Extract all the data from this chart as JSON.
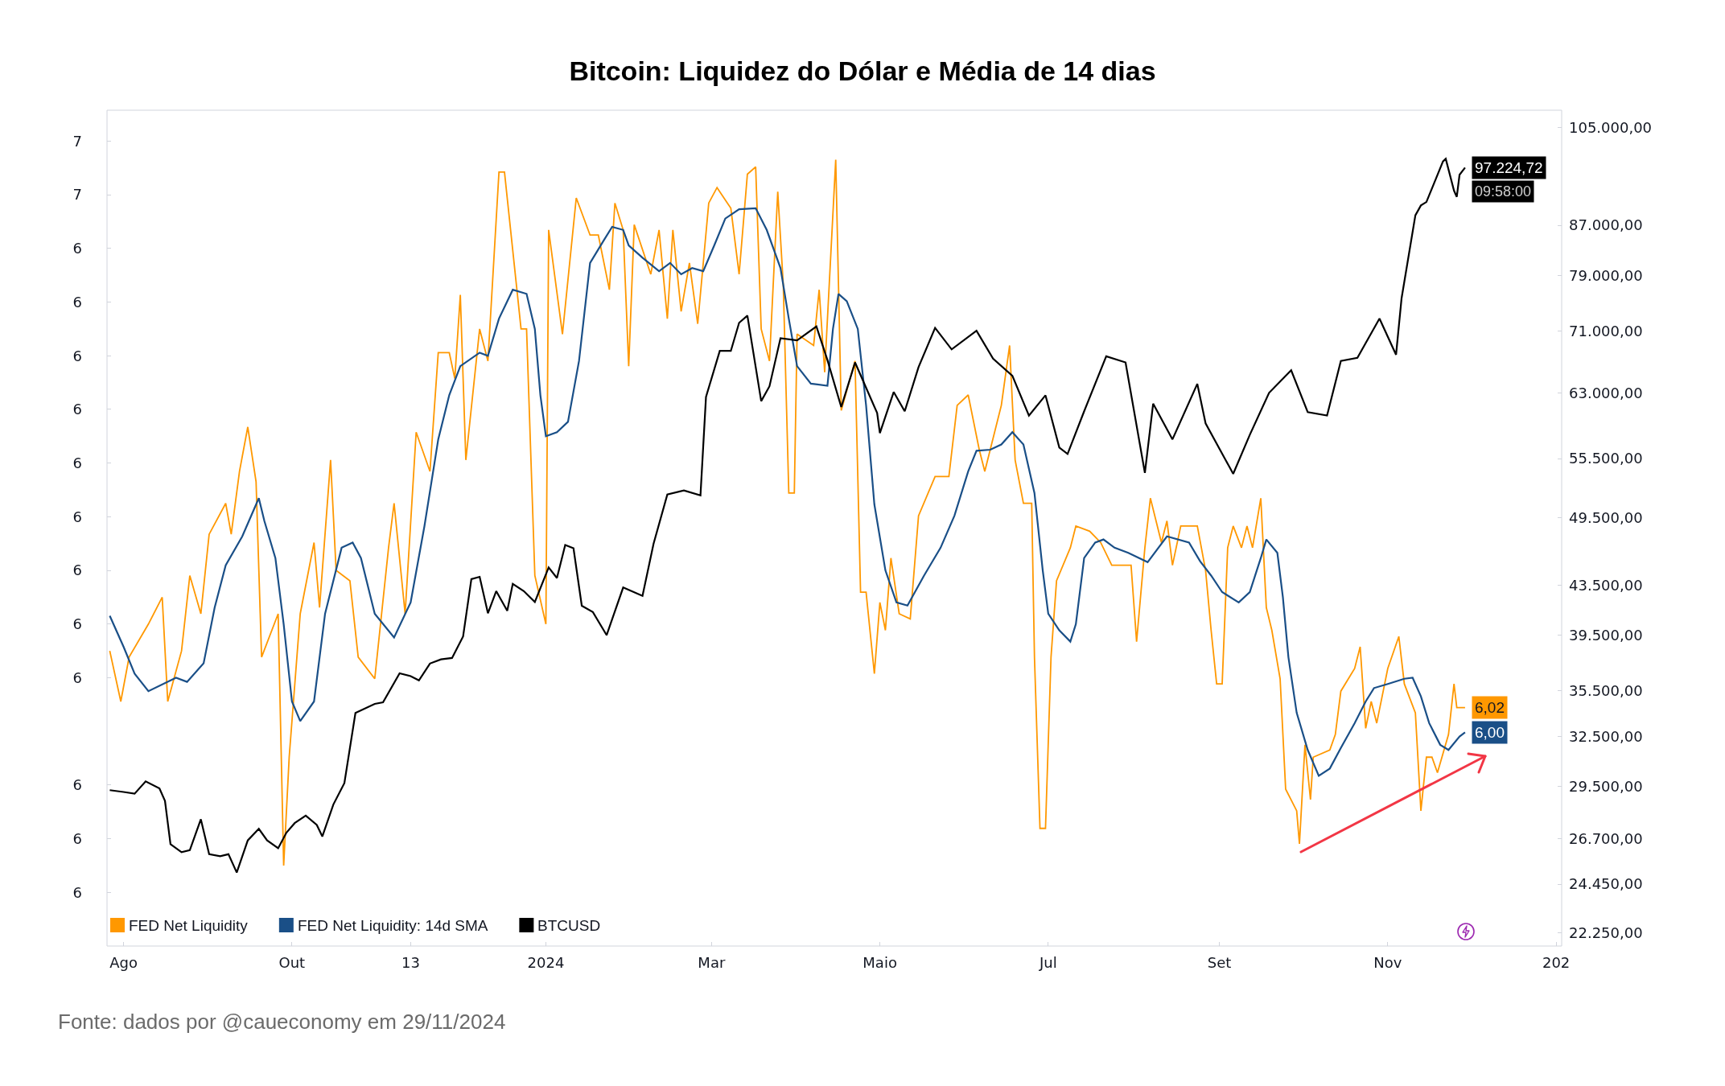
{
  "chart_data": {
    "type": "line",
    "title": "Bitcoin: Liquidez do Dólar e Média de 14 dias",
    "annotations": [
      "Fonte: dados por @caueconomy em 29/11/2024",
      "09:58:00"
    ],
    "legend": "bottom left",
    "xlim": [
      "2023-07-26",
      "2025-01-03"
    ],
    "xticks": [
      {
        "value": "2023-08-01",
        "label": "Ago"
      },
      {
        "value": "2023-10-01",
        "label": "Out"
      },
      {
        "value": "2023-11-13",
        "label": "13"
      },
      {
        "value": "2024-01-01",
        "label": "2024"
      },
      {
        "value": "2024-03-01",
        "label": "Mar"
      },
      {
        "value": "2024-05-01",
        "label": "Maio"
      },
      {
        "value": "2024-07-01",
        "label": "Jul"
      },
      {
        "value": "2024-09-01",
        "label": "Set"
      },
      {
        "value": "2024-11-01",
        "label": "Nov"
      },
      {
        "value": "2025-01-01",
        "label": "202"
      }
    ],
    "ylim": [
      5.79,
      6.6
    ],
    "yticks": [
      {
        "value": 6.57,
        "label": "7"
      },
      {
        "value": 6.518,
        "label": "7"
      },
      {
        "value": 6.466,
        "label": "6"
      },
      {
        "value": 6.414,
        "label": "6"
      },
      {
        "value": 6.362,
        "label": "6"
      },
      {
        "value": 6.31,
        "label": "6"
      },
      {
        "value": 6.258,
        "label": "6"
      },
      {
        "value": 6.206,
        "label": "6"
      },
      {
        "value": 6.154,
        "label": "6"
      },
      {
        "value": 6.102,
        "label": "6"
      },
      {
        "value": 6.05,
        "label": "6"
      },
      {
        "value": 5.946,
        "label": "6"
      },
      {
        "value": 5.894,
        "label": "6"
      },
      {
        "value": 5.842,
        "label": "6"
      }
    ],
    "y2lim": [
      21700,
      108600
    ],
    "y2ticks": [
      {
        "value": 105000,
        "label": "105.000,00"
      },
      {
        "value": 87000,
        "label": "87.000,00"
      },
      {
        "value": 79000,
        "label": "79.000,00"
      },
      {
        "value": 71000,
        "label": "71.000,00"
      },
      {
        "value": 63000,
        "label": "63.000,00"
      },
      {
        "value": 55500,
        "label": "55.500,00"
      },
      {
        "value": 49500,
        "label": "49.500,00"
      },
      {
        "value": 43500,
        "label": "43.500,00"
      },
      {
        "value": 39500,
        "label": "39.500,00"
      },
      {
        "value": 35500,
        "label": "35.500,00"
      },
      {
        "value": 32500,
        "label": "32.500,00"
      },
      {
        "value": 29500,
        "label": "29.500,00"
      },
      {
        "value": 26700,
        "label": "26.700,00"
      },
      {
        "value": 24450,
        "label": "24.450,00"
      },
      {
        "value": 22250,
        "label": "22.250,00"
      }
    ],
    "log": "y2",
    "series": [
      {
        "name": "FED Net Liquidity",
        "color": "#ff9800",
        "x": [
          "2023-07-27",
          "2023-07-31",
          "2023-08-03",
          "2023-08-10",
          "2023-08-15",
          "2023-08-17",
          "2023-08-22",
          "2023-08-25",
          "2023-08-29",
          "2023-09-01",
          "2023-09-07",
          "2023-09-09",
          "2023-09-12",
          "2023-09-15",
          "2023-09-18",
          "2023-09-20",
          "2023-09-26",
          "2023-09-28",
          "2023-09-30",
          "2023-10-04",
          "2023-10-09",
          "2023-10-11",
          "2023-10-15",
          "2023-10-17",
          "2023-10-22",
          "2023-10-25",
          "2023-10-31",
          "2023-11-05",
          "2023-11-07",
          "2023-11-11",
          "2023-11-15",
          "2023-11-20",
          "2023-11-23",
          "2023-11-27",
          "2023-11-29",
          "2023-12-01",
          "2023-12-03",
          "2023-12-08",
          "2023-12-11",
          "2023-12-15",
          "2023-12-17",
          "2023-12-23",
          "2023-12-25",
          "2023-12-28",
          "2024-01-01",
          "2024-01-02",
          "2024-01-07",
          "2024-01-12",
          "2024-01-17",
          "2024-01-20",
          "2024-01-24",
          "2024-01-26",
          "2024-01-29",
          "2024-01-31",
          "2024-02-02",
          "2024-02-08",
          "2024-02-11",
          "2024-02-14",
          "2024-02-16",
          "2024-02-19",
          "2024-02-22",
          "2024-02-25",
          "2024-02-29",
          "2024-03-03",
          "2024-03-08",
          "2024-03-11",
          "2024-03-14",
          "2024-03-17",
          "2024-03-19",
          "2024-03-22",
          "2024-03-25",
          "2024-03-27",
          "2024-03-29",
          "2024-03-31",
          "2024-04-01",
          "2024-04-07",
          "2024-04-09",
          "2024-04-11",
          "2024-04-15",
          "2024-04-17",
          "2024-04-22",
          "2024-04-24",
          "2024-04-26",
          "2024-04-29",
          "2024-05-01",
          "2024-05-03",
          "2024-05-05",
          "2024-05-08",
          "2024-05-12",
          "2024-05-15",
          "2024-05-21",
          "2024-05-26",
          "2024-05-29",
          "2024-06-02",
          "2024-06-06",
          "2024-06-08",
          "2024-06-14",
          "2024-06-17",
          "2024-06-19",
          "2024-06-22",
          "2024-06-25",
          "2024-06-26",
          "2024-06-28",
          "2024-06-30",
          "2024-07-02",
          "2024-07-04",
          "2024-07-09",
          "2024-07-11",
          "2024-07-16",
          "2024-07-20",
          "2024-07-24",
          "2024-07-31",
          "2024-08-02",
          "2024-08-05",
          "2024-08-07",
          "2024-08-11",
          "2024-08-13",
          "2024-08-15",
          "2024-08-18",
          "2024-08-24",
          "2024-08-27",
          "2024-08-29",
          "2024-08-31",
          "2024-09-02",
          "2024-09-04",
          "2024-09-06",
          "2024-09-09",
          "2024-09-11",
          "2024-09-13",
          "2024-09-16",
          "2024-09-18",
          "2024-09-20",
          "2024-09-23",
          "2024-09-25",
          "2024-09-29",
          "2024-09-30",
          "2024-10-02",
          "2024-10-04",
          "2024-10-05",
          "2024-10-11",
          "2024-10-13",
          "2024-10-15",
          "2024-10-20",
          "2024-10-22",
          "2024-10-24",
          "2024-10-26",
          "2024-10-28",
          "2024-11-01",
          "2024-11-05",
          "2024-11-07",
          "2024-11-11",
          "2024-11-13",
          "2024-11-15",
          "2024-11-17",
          "2024-11-19",
          "2024-11-23",
          "2024-11-25",
          "2024-11-26",
          "2024-11-29"
        ],
        "values": [
          6.076,
          6.027,
          6.07,
          6.102,
          6.128,
          6.027,
          6.076,
          6.149,
          6.112,
          6.189,
          6.219,
          6.189,
          6.25,
          6.293,
          6.24,
          6.07,
          6.112,
          5.868,
          5.973,
          6.112,
          6.181,
          6.118,
          6.261,
          6.154,
          6.144,
          6.07,
          6.049,
          6.176,
          6.219,
          6.112,
          6.288,
          6.25,
          6.365,
          6.365,
          6.34,
          6.421,
          6.261,
          6.388,
          6.357,
          6.54,
          6.54,
          6.388,
          6.388,
          6.149,
          6.102,
          6.484,
          6.383,
          6.515,
          6.479,
          6.479,
          6.426,
          6.51,
          6.484,
          6.352,
          6.489,
          6.441,
          6.484,
          6.398,
          6.484,
          6.405,
          6.452,
          6.393,
          6.51,
          6.525,
          6.505,
          6.441,
          6.538,
          6.545,
          6.388,
          6.357,
          6.521,
          6.431,
          6.229,
          6.229,
          6.383,
          6.372,
          6.426,
          6.346,
          6.552,
          6.309,
          6.357,
          6.133,
          6.133,
          6.054,
          6.123,
          6.096,
          6.166,
          6.112,
          6.107,
          6.207,
          6.245,
          6.245,
          6.314,
          6.324,
          6.271,
          6.25,
          6.314,
          6.372,
          6.261,
          6.219,
          6.219,
          6.07,
          5.904,
          5.904,
          6.07,
          6.144,
          6.176,
          6.197,
          6.192,
          6.181,
          6.159,
          6.159,
          6.085,
          6.176,
          6.224,
          6.181,
          6.202,
          6.159,
          6.197,
          6.197,
          6.154,
          6.096,
          6.044,
          6.044,
          6.176,
          6.197,
          6.176,
          6.197,
          6.176,
          6.224,
          6.118,
          6.096,
          6.049,
          5.942,
          5.921,
          5.889,
          5.985,
          5.932,
          5.973,
          5.98,
          5.995,
          6.037,
          6.059,
          6.08,
          6.001,
          6.027,
          6.006,
          6.059,
          6.09,
          6.044,
          6.016,
          5.921,
          5.973,
          5.973,
          5.958,
          5.995,
          6.044,
          6.021,
          6.021
        ],
        "value_labels": [
          null,
          null,
          null,
          null,
          null,
          null,
          null,
          null,
          null,
          null,
          null,
          null,
          null,
          null,
          null,
          null,
          null,
          null,
          null,
          null,
          null,
          null,
          null,
          null,
          null,
          null,
          null,
          null,
          null,
          null,
          null,
          null,
          null,
          null,
          null,
          null,
          null,
          null,
          null,
          null,
          null,
          null,
          null,
          null,
          null,
          null,
          null,
          null,
          null,
          null,
          null,
          null,
          null,
          null,
          null,
          null,
          null,
          null,
          null,
          null,
          null,
          null,
          null,
          null,
          null,
          null,
          null,
          null,
          null,
          null,
          null,
          null,
          null,
          null,
          null,
          null,
          null,
          null,
          null,
          null,
          null,
          null,
          null,
          null,
          null,
          null,
          null,
          null,
          null,
          null,
          null,
          null,
          null,
          null,
          null,
          null,
          null,
          null,
          null,
          null,
          null,
          null,
          null,
          null,
          null,
          null,
          null,
          null,
          null,
          null,
          null,
          null,
          null,
          null,
          null,
          null,
          null,
          null,
          null,
          null,
          null,
          null,
          null,
          null,
          null,
          null,
          null,
          null,
          null,
          null,
          null,
          null,
          null,
          null,
          null,
          null,
          null,
          null,
          null,
          null,
          null,
          null,
          null,
          null,
          null,
          null,
          null,
          null,
          null,
          null,
          null,
          null,
          null,
          null,
          null,
          null,
          null,
          null,
          "6,02"
        ]
      },
      {
        "name": "FED Net Liquidity: 14d SMA",
        "color": "#1a4f87",
        "x": [
          "2023-07-27",
          "2023-08-01",
          "2023-08-05",
          "2023-08-10",
          "2023-08-20",
          "2023-08-24",
          "2023-08-30",
          "2023-09-03",
          "2023-09-07",
          "2023-09-13",
          "2023-09-19",
          "2023-09-21",
          "2023-09-25",
          "2023-09-28",
          "2023-10-01",
          "2023-10-04",
          "2023-10-09",
          "2023-10-13",
          "2023-10-19",
          "2023-10-23",
          "2023-10-26",
          "2023-10-31",
          "2023-11-07",
          "2023-11-13",
          "2023-11-18",
          "2023-11-23",
          "2023-11-27",
          "2023-12-01",
          "2023-12-08",
          "2023-12-11",
          "2023-12-15",
          "2023-12-20",
          "2023-12-25",
          "2023-12-28",
          "2023-12-30",
          "2024-01-01",
          "2024-01-05",
          "2024-01-09",
          "2024-01-13",
          "2024-01-17",
          "2024-01-22",
          "2024-01-25",
          "2024-01-29",
          "2024-01-31",
          "2024-02-05",
          "2024-02-11",
          "2024-02-15",
          "2024-02-19",
          "2024-02-23",
          "2024-02-27",
          "2024-03-02",
          "2024-03-06",
          "2024-03-11",
          "2024-03-17",
          "2024-03-21",
          "2024-03-26",
          "2024-03-29",
          "2024-04-01",
          "2024-04-06",
          "2024-04-12",
          "2024-04-14",
          "2024-04-16",
          "2024-04-19",
          "2024-04-23",
          "2024-04-26",
          "2024-04-29",
          "2024-05-03",
          "2024-05-07",
          "2024-05-11",
          "2024-05-17",
          "2024-05-23",
          "2024-05-28",
          "2024-06-02",
          "2024-06-05",
          "2024-06-10",
          "2024-06-14",
          "2024-06-18",
          "2024-06-22",
          "2024-06-26",
          "2024-06-29",
          "2024-07-01",
          "2024-07-05",
          "2024-07-09",
          "2024-07-11",
          "2024-07-14",
          "2024-07-18",
          "2024-07-21",
          "2024-07-25",
          "2024-07-30",
          "2024-08-06",
          "2024-08-13",
          "2024-08-21",
          "2024-08-25",
          "2024-08-29",
          "2024-09-02",
          "2024-09-08",
          "2024-09-12",
          "2024-09-16",
          "2024-09-18",
          "2024-09-22",
          "2024-09-24",
          "2024-09-26",
          "2024-09-29",
          "2024-10-03",
          "2024-10-07",
          "2024-10-11",
          "2024-10-15",
          "2024-10-20",
          "2024-10-24",
          "2024-10-27",
          "2024-11-01",
          "2024-11-07",
          "2024-11-10",
          "2024-11-13",
          "2024-11-16",
          "2024-11-20",
          "2024-11-23",
          "2024-11-27",
          "2024-11-29"
        ],
        "values": [
          6.11,
          6.08,
          6.054,
          6.037,
          6.05,
          6.046,
          6.064,
          6.118,
          6.159,
          6.187,
          6.224,
          6.202,
          6.166,
          6.102,
          6.027,
          6.008,
          6.027,
          6.112,
          6.176,
          6.181,
          6.166,
          6.112,
          6.089,
          6.123,
          6.197,
          6.281,
          6.324,
          6.352,
          6.365,
          6.362,
          6.398,
          6.426,
          6.422,
          6.388,
          6.324,
          6.284,
          6.288,
          6.298,
          6.357,
          6.452,
          6.474,
          6.487,
          6.484,
          6.469,
          6.457,
          6.444,
          6.452,
          6.441,
          6.447,
          6.444,
          6.469,
          6.495,
          6.504,
          6.505,
          6.484,
          6.447,
          6.398,
          6.352,
          6.335,
          6.333,
          6.388,
          6.422,
          6.415,
          6.388,
          6.314,
          6.218,
          6.154,
          6.123,
          6.12,
          6.149,
          6.176,
          6.207,
          6.25,
          6.27,
          6.271,
          6.276,
          6.288,
          6.276,
          6.229,
          6.154,
          6.112,
          6.096,
          6.085,
          6.102,
          6.166,
          6.181,
          6.184,
          6.176,
          6.171,
          6.162,
          6.187,
          6.181,
          6.163,
          6.149,
          6.133,
          6.123,
          6.133,
          6.166,
          6.184,
          6.171,
          6.128,
          6.07,
          6.016,
          5.98,
          5.955,
          5.962,
          5.982,
          6.006,
          6.027,
          6.04,
          6.044,
          6.049,
          6.05,
          6.032,
          6.006,
          5.985,
          5.98,
          5.993,
          5.997
        ],
        "value_labels": [
          null,
          null,
          null,
          null,
          null,
          null,
          null,
          null,
          null,
          null,
          null,
          null,
          null,
          null,
          null,
          null,
          null,
          null,
          null,
          null,
          null,
          null,
          null,
          null,
          null,
          null,
          null,
          null,
          null,
          null,
          null,
          null,
          null,
          null,
          null,
          null,
          null,
          null,
          null,
          null,
          null,
          null,
          null,
          null,
          null,
          null,
          null,
          null,
          null,
          null,
          null,
          null,
          null,
          null,
          null,
          null,
          null,
          null,
          null,
          null,
          null,
          null,
          null,
          null,
          null,
          null,
          null,
          null,
          null,
          null,
          null,
          null,
          null,
          null,
          null,
          null,
          null,
          null,
          null,
          null,
          null,
          null,
          null,
          null,
          null,
          null,
          null,
          null,
          null,
          null,
          null,
          null,
          null,
          null,
          null,
          null,
          null,
          null,
          null,
          null,
          null,
          null,
          null,
          null,
          null,
          null,
          null,
          null,
          null,
          null,
          null,
          null,
          null,
          null,
          null,
          null,
          null,
          null,
          "6,00"
        ]
      },
      {
        "name": "BTCUSD",
        "color": "#000000",
        "axis": "y2",
        "x": [
          "2023-07-27",
          "2023-08-01",
          "2023-08-05",
          "2023-08-09",
          "2023-08-14",
          "2023-08-16",
          "2023-08-18",
          "2023-08-22",
          "2023-08-25",
          "2023-08-29",
          "2023-09-01",
          "2023-09-05",
          "2023-09-08",
          "2023-09-11",
          "2023-09-15",
          "2023-09-19",
          "2023-09-22",
          "2023-09-26",
          "2023-09-29",
          "2023-10-02",
          "2023-10-06",
          "2023-10-10",
          "2023-10-12",
          "2023-10-16",
          "2023-10-20",
          "2023-10-24",
          "2023-10-31",
          "2023-11-03",
          "2023-11-09",
          "2023-11-13",
          "2023-11-16",
          "2023-11-20",
          "2023-11-24",
          "2023-11-28",
          "2023-12-02",
          "2023-12-05",
          "2023-12-08",
          "2023-12-11",
          "2023-12-14",
          "2023-12-18",
          "2023-12-20",
          "2023-12-24",
          "2023-12-28",
          "2024-01-02",
          "2024-01-05",
          "2024-01-08",
          "2024-01-11",
          "2024-01-14",
          "2024-01-18",
          "2024-01-23",
          "2024-01-29",
          "2024-02-05",
          "2024-02-09",
          "2024-02-14",
          "2024-02-20",
          "2024-02-26",
          "2024-02-28",
          "2024-03-04",
          "2024-03-08",
          "2024-03-11",
          "2024-03-14",
          "2024-03-19",
          "2024-03-22",
          "2024-03-26",
          "2024-04-01",
          "2024-04-08",
          "2024-04-12",
          "2024-04-17",
          "2024-04-22",
          "2024-04-30",
          "2024-05-01",
          "2024-05-06",
          "2024-05-10",
          "2024-05-15",
          "2024-05-21",
          "2024-05-27",
          "2024-06-05",
          "2024-06-11",
          "2024-06-18",
          "2024-06-24",
          "2024-06-30",
          "2024-07-05",
          "2024-07-08",
          "2024-07-14",
          "2024-07-22",
          "2024-07-29",
          "2024-08-05",
          "2024-08-08",
          "2024-08-15",
          "2024-08-24",
          "2024-08-27",
          "2024-09-06",
          "2024-09-12",
          "2024-09-19",
          "2024-09-27",
          "2024-10-03",
          "2024-10-10",
          "2024-10-15",
          "2024-10-21",
          "2024-10-29",
          "2024-11-04",
          "2024-11-06",
          "2024-11-11",
          "2024-11-13",
          "2024-11-15",
          "2024-11-21",
          "2024-11-22",
          "2024-11-25",
          "2024-11-26",
          "2024-11-27",
          "2024-11-29"
        ],
        "values": [
          29300,
          29200,
          29100,
          29800,
          29400,
          28700,
          26400,
          26000,
          26100,
          27700,
          25900,
          25800,
          25900,
          25000,
          26600,
          27200,
          26600,
          26200,
          27000,
          27500,
          27900,
          27400,
          26800,
          28500,
          29700,
          34000,
          34600,
          34700,
          36700,
          36500,
          36200,
          37400,
          37700,
          37800,
          39400,
          44000,
          44200,
          41200,
          43000,
          41400,
          43600,
          43000,
          42100,
          45000,
          44100,
          47000,
          46700,
          41800,
          41300,
          39500,
          43300,
          42600,
          47100,
          51800,
          52200,
          51700,
          62500,
          68300,
          68300,
          72100,
          73100,
          62000,
          63800,
          70000,
          69700,
          71600,
          67100,
          61300,
          66800,
          60600,
          58300,
          63100,
          60800,
          66200,
          71400,
          68500,
          71000,
          67300,
          65100,
          60300,
          62700,
          56700,
          56000,
          60800,
          67600,
          66800,
          54000,
          61700,
          57600,
          64100,
          59400,
          53900,
          58100,
          63000,
          65800,
          60700,
          60300,
          67000,
          67400,
          72700,
          67800,
          75600,
          88700,
          90400,
          91000,
          98400,
          98900,
          93000,
          91900,
          95900,
          97224.72
        ],
        "value_labels": [
          null,
          null,
          null,
          null,
          null,
          null,
          null,
          null,
          null,
          null,
          null,
          null,
          null,
          null,
          null,
          null,
          null,
          null,
          null,
          null,
          null,
          null,
          null,
          null,
          null,
          null,
          null,
          null,
          null,
          null,
          null,
          null,
          null,
          null,
          null,
          null,
          null,
          null,
          null,
          null,
          null,
          null,
          null,
          null,
          null,
          null,
          null,
          null,
          null,
          null,
          null,
          null,
          null,
          null,
          null,
          null,
          null,
          null,
          null,
          null,
          null,
          null,
          null,
          null,
          null,
          null,
          null,
          null,
          null,
          null,
          null,
          null,
          null,
          null,
          null,
          null,
          null,
          null,
          null,
          null,
          null,
          null,
          null,
          null,
          null,
          null,
          null,
          null,
          null,
          null,
          null,
          null,
          null,
          null,
          null,
          null,
          null,
          null,
          null,
          null,
          null,
          null,
          null,
          null,
          null,
          null,
          null,
          null,
          null,
          null,
          "97.224,72"
        ]
      }
    ]
  }
}
